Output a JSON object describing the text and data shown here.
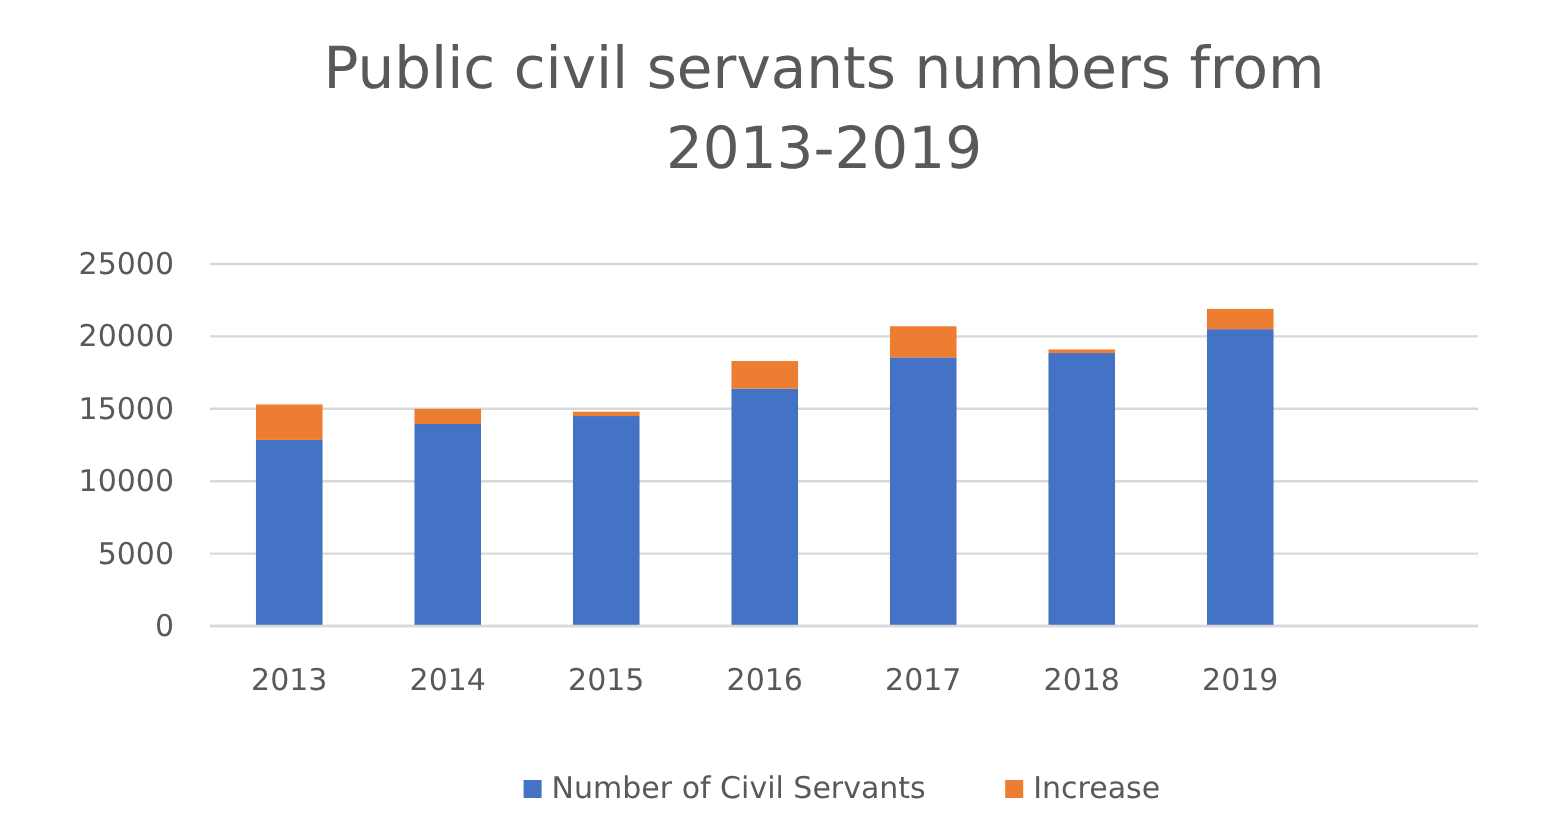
{
  "chart_data": {
    "type": "bar",
    "title": "Public civil servants numbers from 2013-2019",
    "categories": [
      "2013",
      "2014",
      "2015",
      "2016",
      "2017",
      "2018",
      "2019",
      null
    ],
    "stacked": true,
    "series": [
      {
        "name": "Number of Civil Servants",
        "color": "#4472c4",
        "values": [
          12850,
          13950,
          14500,
          16400,
          18550,
          18850,
          20500,
          null
        ]
      },
      {
        "name": "Increase",
        "color": "#ed7d31",
        "values": [
          2450,
          1050,
          300,
          1900,
          2150,
          250,
          1400,
          null
        ]
      }
    ],
    "ylim": [
      0,
      25000
    ],
    "yticks": [
      0,
      5000,
      10000,
      15000,
      20000,
      25000
    ],
    "grid": "y",
    "legend": "bottom"
  }
}
